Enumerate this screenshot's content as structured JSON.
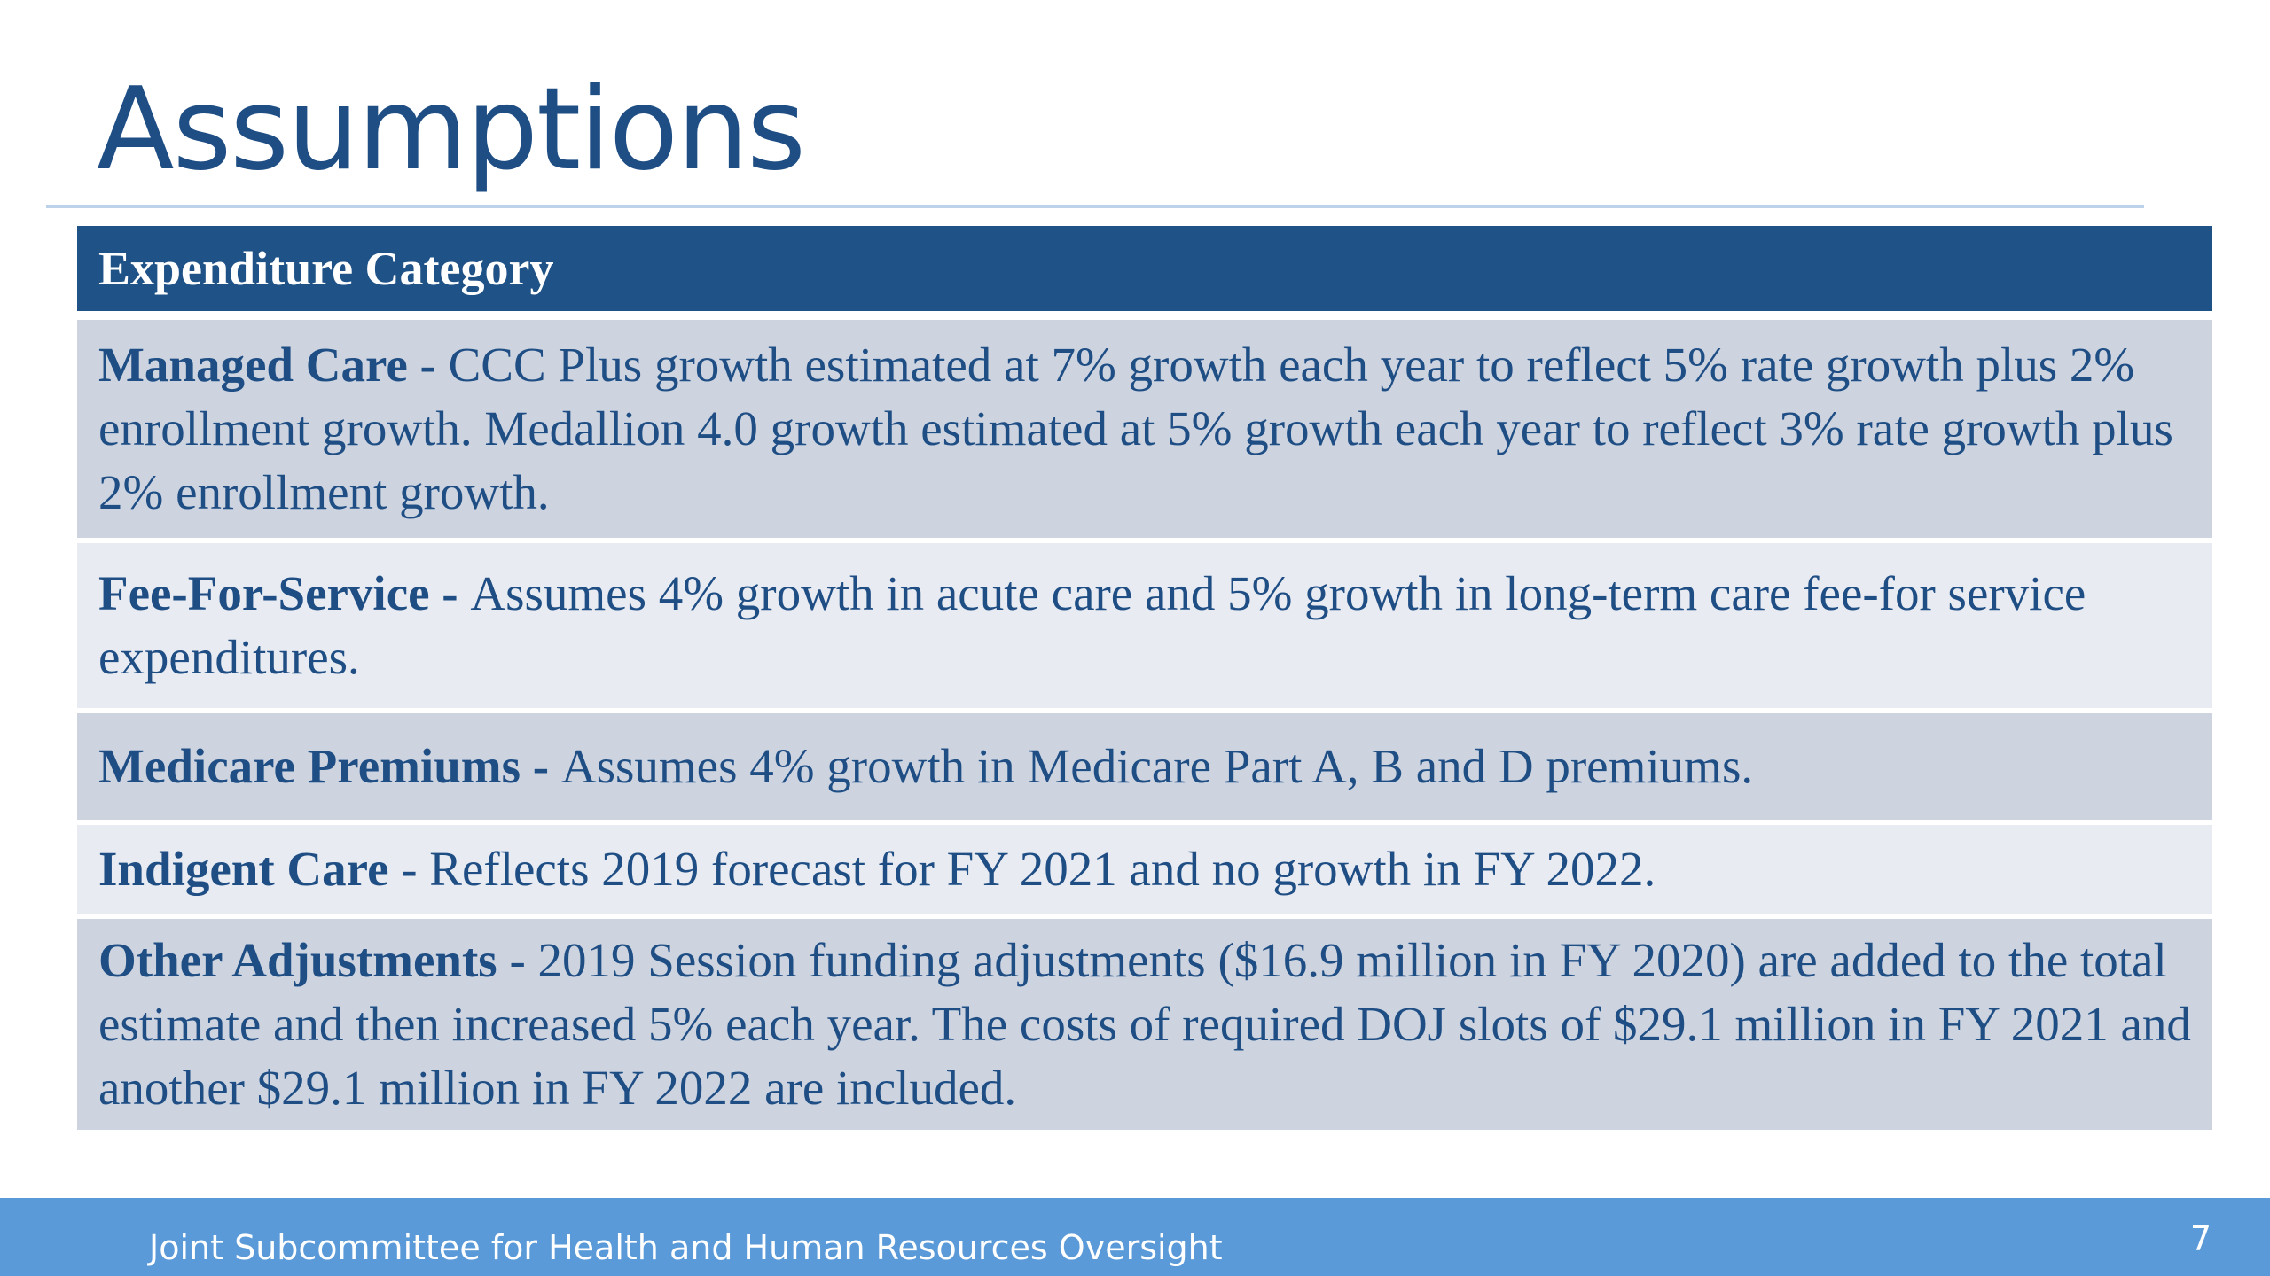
{
  "slide": {
    "title": "Assumptions",
    "table_header": "Expenditure Category",
    "rows": [
      {
        "label": "Managed Care - ",
        "text": " CCC Plus growth estimated at 7% growth each year to reflect 5% rate growth plus 2% enrollment growth.  Medallion 4.0 growth estimated at 5% growth each year to reflect 3% rate growth plus 2% enrollment growth."
      },
      {
        "label": "Fee-For-Service - ",
        "text": "Assumes 4% growth in acute care and 5% growth in long-term care fee-for service expenditures."
      },
      {
        "label": "Medicare Premiums - ",
        "text": "Assumes 4% growth in Medicare Part A, B and D premiums."
      },
      {
        "label": "Indigent Care - ",
        "text": "Reflects 2019 forecast for FY 2021 and no growth in FY 2022."
      },
      {
        "label": "Other Adjustments",
        "text": " -  2019 Session funding adjustments ($16.9 million in FY 2020) are added to the total estimate and then increased 5% each year.   The costs of required DOJ slots of $29.1 million in FY 2021 and another $29.1 million in FY 2022 are included."
      }
    ]
  },
  "footer": {
    "text": "Joint Subcommittee for Health and Human Resources Oversight",
    "page_number": "7"
  },
  "colors": {
    "title": "#1f4e85",
    "header_bg": "#1f5287",
    "row_dark": "#cdd4e0",
    "row_light": "#e8ebf1",
    "footer_bg": "#5a9ad8"
  }
}
